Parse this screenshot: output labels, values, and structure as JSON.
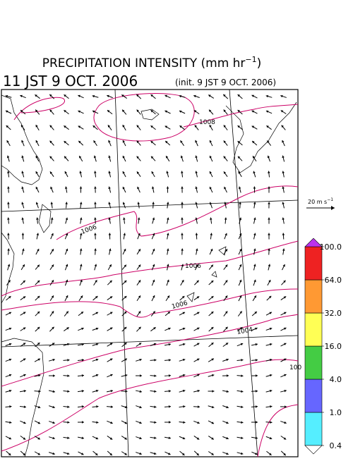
{
  "title_parts": [
    "PRECIPITATION INTENSITY (mm hr",
    "−1",
    ")"
  ],
  "valid_time": "11 JST 9 OCT. 2006",
  "init_time": "(init. 9 JST 9 OCT. 2006)",
  "reference_vector": {
    "parts": [
      "20 m s",
      "−1"
    ]
  },
  "contour_labels": [
    "1008",
    "1006",
    "1006",
    "1006",
    "1004",
    "100"
  ],
  "colorbar": {
    "ticks": [
      {
        "value": 0.4,
        "label": "0.4"
      },
      {
        "value": 1,
        "label": "1.0"
      },
      {
        "value": 4,
        "label": "4.0"
      },
      {
        "value": 16,
        "label": "16.0"
      },
      {
        "value": 32,
        "label": "32.0"
      },
      {
        "value": 64,
        "label": "64.0"
      },
      {
        "value": 100,
        "label": "100.0"
      }
    ],
    "colors": [
      "#55eeff",
      "#6666ff",
      "#44cc44",
      "#ffff55",
      "#ff9933",
      "#ee2222"
    ],
    "under_color": "#ffffff",
    "over_color": "#bb33ee"
  }
}
